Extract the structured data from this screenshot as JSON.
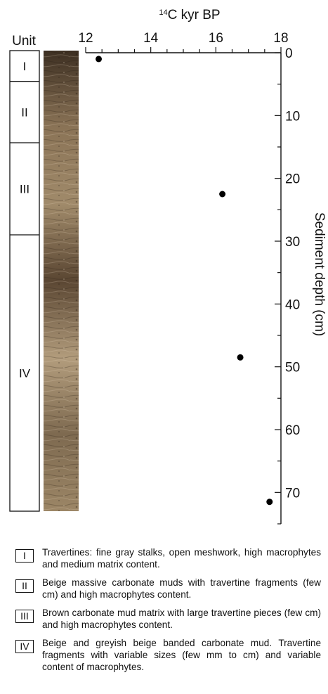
{
  "chart_data": {
    "type": "scatter",
    "title": "",
    "xlabel": "¹⁴C kyr BP",
    "xlabel_parts": {
      "superscript": "14",
      "text": "C kyr BP"
    },
    "ylabel": "Sediment depth (cm)",
    "xlim": [
      12,
      18
    ],
    "ylim": [
      0,
      75
    ],
    "y_inverted": true,
    "x_axis_position": "top",
    "y_axis_position": "right",
    "x_ticks": [
      "12",
      "14",
      "16",
      "18"
    ],
    "y_ticks": [
      "0",
      "10",
      "20",
      "30",
      "40",
      "50",
      "60",
      "70"
    ],
    "grid": false,
    "series": [
      {
        "color": "#000000",
        "x": [
          12.4,
          16.2,
          16.75,
          17.65
        ],
        "y": [
          1,
          22.5,
          48.5,
          71.5
        ]
      }
    ]
  },
  "units": {
    "header": "Unit",
    "items": [
      {
        "label": "I",
        "top": 0,
        "bottom": 5
      },
      {
        "label": "II",
        "top": 5,
        "bottom": 15
      },
      {
        "label": "III",
        "top": 15,
        "bottom": 30
      },
      {
        "label": "IV",
        "top": 30,
        "bottom": 75
      }
    ]
  },
  "core_image": {
    "colors": [
      "#3d2f22",
      "#8a7356",
      "#a08a6a",
      "#5a4632",
      "#b29c7c",
      "#7e6a50",
      "#9c8666"
    ]
  },
  "legend": [
    {
      "label": "I",
      "text": "Travertines: fine gray stalks, open meshwork, high macrophytes and medium matrix content."
    },
    {
      "label": "II",
      "text": "Beige massive carbonate muds with travertine fragments (few cm) and high macrophytes content."
    },
    {
      "label": "III",
      "text": "Brown carbonate mud matrix with large travertine pieces (few cm) and high macrophytes content."
    },
    {
      "label": "IV",
      "text": "Beige and greyish beige banded carbonate mud. Travertine fragments with variable sizes (few mm to cm) and variable content of macrophytes."
    }
  ]
}
